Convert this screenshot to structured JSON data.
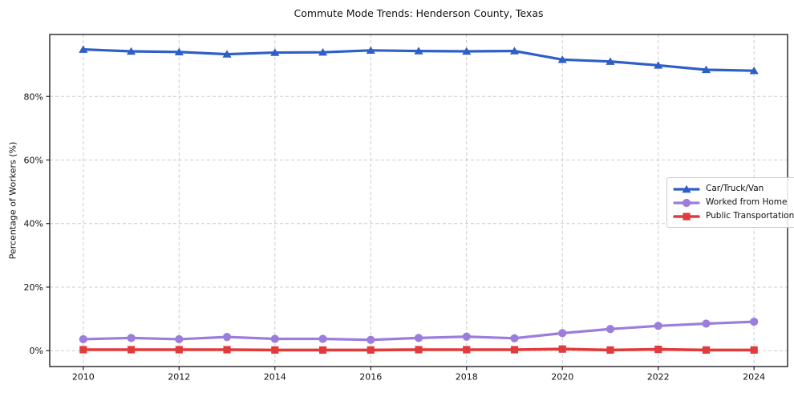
{
  "figure": {
    "background": "#ffffff",
    "text_color": "#111111",
    "spine_color": "#222222",
    "grid_color": "#cccccc",
    "legend_border_color": "#cccccc"
  },
  "chart_data": {
    "type": "line",
    "title": "Commute Mode Trends: Henderson County, Texas",
    "xlabel": "",
    "ylabel": "Percentage of Workers (%)",
    "x": [
      2010,
      2011,
      2012,
      2013,
      2014,
      2015,
      2016,
      2017,
      2018,
      2019,
      2020,
      2021,
      2022,
      2023,
      2024
    ],
    "series": [
      {
        "name": "Car/Truck/Van",
        "color": "#2d5fc7",
        "marker": "triangle-up",
        "line_width": 3.2,
        "values": [
          94.8,
          94.2,
          94.0,
          93.3,
          93.8,
          93.9,
          94.5,
          94.3,
          94.2,
          94.3,
          91.6,
          91.0,
          89.8,
          88.4,
          88.1
        ]
      },
      {
        "name": "Worked from Home",
        "color": "#9b7edc",
        "marker": "circle",
        "line_width": 3.2,
        "values": [
          3.6,
          4.0,
          3.6,
          4.3,
          3.7,
          3.7,
          3.4,
          4.0,
          4.4,
          3.9,
          5.5,
          6.8,
          7.8,
          8.5,
          9.1
        ]
      },
      {
        "name": "Public Transportation",
        "color": "#e23b3b",
        "marker": "square",
        "line_width": 3.6,
        "values": [
          0.3,
          0.3,
          0.3,
          0.3,
          0.2,
          0.2,
          0.2,
          0.3,
          0.3,
          0.3,
          0.5,
          0.2,
          0.4,
          0.2,
          0.2
        ]
      }
    ],
    "x_ticks": [
      {
        "v": 2010,
        "label": "2010"
      },
      {
        "v": 2012,
        "label": "2012"
      },
      {
        "v": 2014,
        "label": "2014"
      },
      {
        "v": 2016,
        "label": "2016"
      },
      {
        "v": 2018,
        "label": "2018"
      },
      {
        "v": 2020,
        "label": "2020"
      },
      {
        "v": 2022,
        "label": "2022"
      },
      {
        "v": 2024,
        "label": "2024"
      }
    ],
    "y_ticks": [
      {
        "v": 0,
        "label": "0%"
      },
      {
        "v": 20,
        "label": "20%"
      },
      {
        "v": 40,
        "label": "40%"
      },
      {
        "v": 60,
        "label": "60%"
      },
      {
        "v": 80,
        "label": "80%"
      }
    ],
    "xlim": [
      2009.3,
      2024.7
    ],
    "ylim": [
      -5.0,
      99.5
    ],
    "grid": true,
    "grid_style": "dashed",
    "legend_position": "center right"
  }
}
